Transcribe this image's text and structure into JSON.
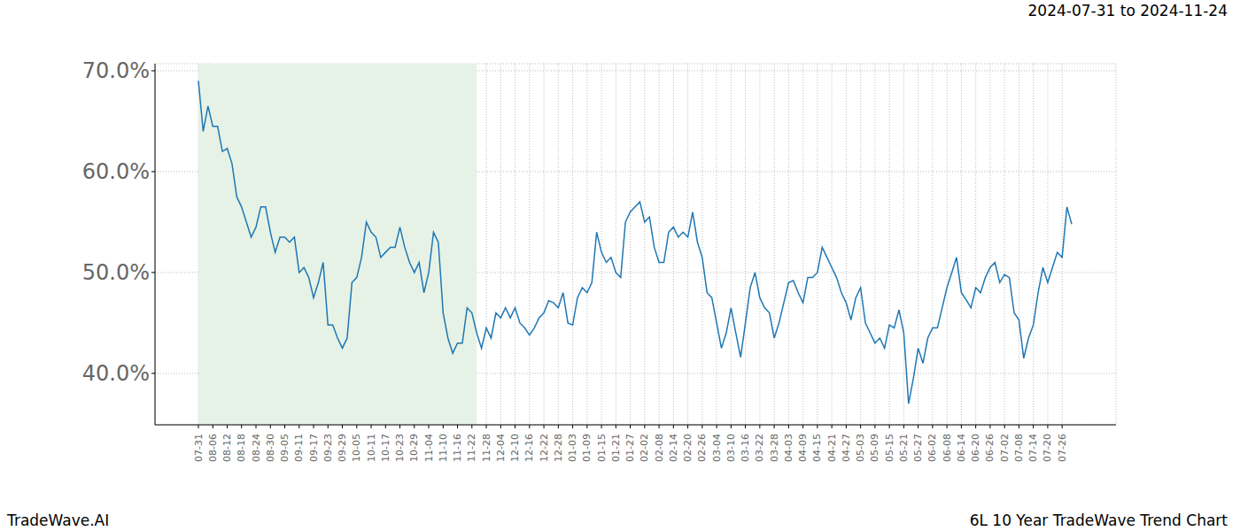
{
  "chart_data": {
    "type": "line",
    "title": "6L 10 Year TradeWave Trend Chart",
    "subtitle": "2024-07-31 to 2024-11-24",
    "source": "TradeWave.AI",
    "categories": [
      "07-31",
      null,
      null,
      "08-06",
      null,
      null,
      "08-12",
      null,
      null,
      "08-18",
      null,
      null,
      "08-24",
      null,
      null,
      "08-30",
      null,
      null,
      "09-05",
      null,
      null,
      "09-11",
      null,
      null,
      "09-17",
      null,
      null,
      "09-23",
      null,
      null,
      "09-29",
      null,
      null,
      "10-05",
      null,
      null,
      "10-11",
      null,
      null,
      "10-17",
      null,
      null,
      "10-23",
      null,
      null,
      "10-29",
      null,
      null,
      "11-04",
      null,
      null,
      "11-10",
      null,
      null,
      "11-16",
      null,
      null,
      "11-22",
      null,
      null,
      "11-28",
      null,
      null,
      "12-04",
      null,
      null,
      "12-10",
      null,
      null,
      "12-16",
      null,
      null,
      "12-22",
      null,
      null,
      "12-28",
      null,
      null,
      "01-03",
      null,
      null,
      "01-09",
      null,
      null,
      "01-15",
      null,
      null,
      "01-21",
      null,
      null,
      "01-27",
      null,
      null,
      "02-02",
      null,
      null,
      "02-08",
      null,
      null,
      "02-14",
      null,
      null,
      "02-20",
      null,
      null,
      "02-26",
      null,
      null,
      "03-04",
      null,
      null,
      "03-10",
      null,
      null,
      "03-16",
      null,
      null,
      "03-22",
      null,
      null,
      "03-28",
      null,
      null,
      "04-03",
      null,
      null,
      "04-09",
      null,
      null,
      "04-15",
      null,
      null,
      "04-21",
      null,
      null,
      "04-27",
      null,
      null,
      "05-03",
      null,
      null,
      "05-09",
      null,
      null,
      "05-15",
      null,
      null,
      "05-21",
      null,
      null,
      "05-27",
      null,
      null,
      "06-02",
      null,
      null,
      "06-08",
      null,
      null,
      "06-14",
      null,
      null,
      "06-20",
      null,
      null,
      "06-26",
      null,
      null,
      "07-02",
      null,
      null,
      "07-08",
      null,
      null,
      "07-14",
      null,
      null,
      "07-20",
      null,
      null,
      "07-26",
      null,
      null
    ],
    "values": [
      69,
      64,
      66.5,
      64.5,
      64.5,
      62,
      62.3,
      60.8,
      57.5,
      56.5,
      55,
      53.5,
      54.5,
      56.5,
      56.5,
      54,
      52,
      53.5,
      53.5,
      53,
      53.5,
      50,
      50.5,
      49.5,
      47.5,
      49,
      51,
      44.8,
      44.8,
      43.5,
      42.5,
      43.5,
      49,
      49.5,
      51.5,
      55,
      54,
      53.5,
      51.5,
      52,
      52.5,
      52.5,
      54.5,
      52.5,
      51,
      50,
      51,
      48,
      50,
      54,
      53,
      46,
      43.5,
      42,
      43,
      43,
      46.5,
      46,
      44,
      42.5,
      44.5,
      43.5,
      46,
      45.5,
      46.5,
      45.5,
      46.5,
      45,
      44.5,
      43.8,
      44.5,
      45.5,
      46,
      47.2,
      47,
      46.5,
      48,
      45,
      44.8,
      47.5,
      48.5,
      48,
      49,
      54,
      52,
      51,
      51.5,
      50,
      49.5,
      55,
      56,
      56.5,
      57,
      55,
      55.5,
      52.5,
      51,
      51,
      54,
      54.5,
      53.5,
      54,
      53.5,
      56,
      53,
      51.5,
      48,
      47.5,
      45,
      42.5,
      44,
      46.5,
      44,
      41.6,
      45,
      48.5,
      50,
      47.5,
      46.5,
      46,
      43.5,
      45,
      47,
      49,
      49.2,
      48,
      47,
      49.5,
      49.5,
      50,
      52.5,
      51.5,
      50.5,
      49.5,
      48,
      47,
      45.3,
      47.5,
      48.5,
      45,
      44,
      43,
      43.5,
      42.5,
      44.8,
      44.5,
      46.3,
      44,
      37,
      39.5,
      42.5,
      41,
      43.5,
      44.5,
      44.5,
      46.5,
      48.5,
      50,
      51.5,
      48,
      47.3,
      46.5,
      48.5,
      48,
      49.5,
      50.5,
      51,
      49,
      49.8,
      49.5,
      46,
      45.3,
      41.5,
      43.5,
      44.8,
      48,
      50.5,
      49,
      50.5,
      52,
      51.5,
      56.5,
      54.8
    ],
    "color": "#1f77b4",
    "shaded_range": {
      "from": 0,
      "to": 58,
      "color": "#e6f2e6"
    },
    "ylim": [
      34.9,
      70.7
    ],
    "yticks": [
      {
        "value": 40,
        "label": "40.0%"
      },
      {
        "value": 50,
        "label": "50.0%"
      },
      {
        "value": 60,
        "label": "60.0%"
      },
      {
        "value": 70,
        "label": "70.0%"
      }
    ],
    "grid": true
  }
}
